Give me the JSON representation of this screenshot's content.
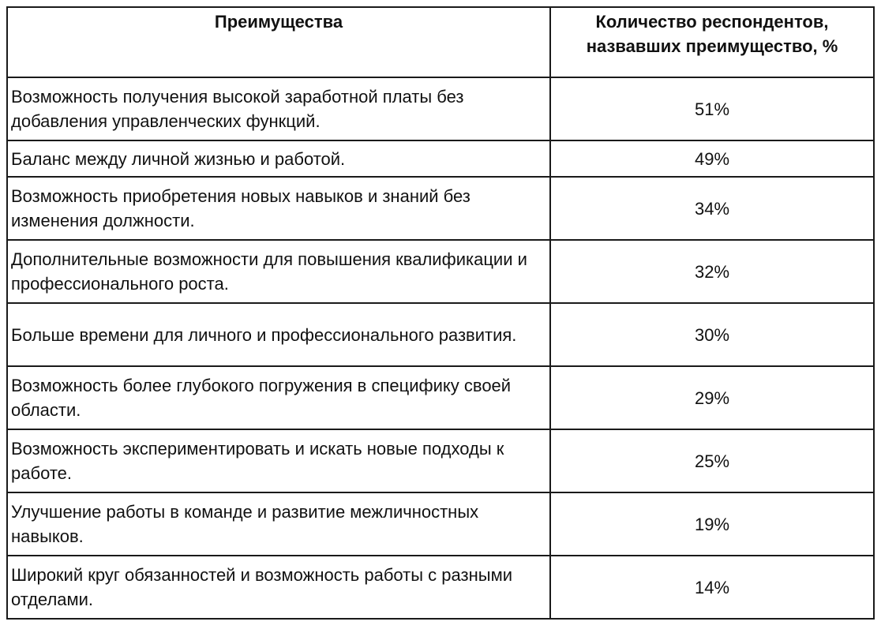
{
  "table": {
    "headers": [
      "Преимущества",
      "Количество респондентов, назвавших преимущество, %"
    ],
    "rows": [
      {
        "label": "Возможность получения высокой заработной платы без добавления управленческих функций.",
        "value": "51%"
      },
      {
        "label": "Баланс между личной жизнью и работой.",
        "value": "49%"
      },
      {
        "label": "Возможность приобретения новых навыков и знаний без изменения должности.",
        "value": "34%"
      },
      {
        "label": "Дополнительные возможности для повышения квалификации и профессионального роста.",
        "value": "32%"
      },
      {
        "label": "Больше времени для личного и профессионального развития.",
        "value": "30%"
      },
      {
        "label": "Возможность более глубокого погружения в специфику своей области.",
        "value": "29%"
      },
      {
        "label": "Возможность экспериментировать и искать новые подходы к работе.",
        "value": "25%"
      },
      {
        "label": "Улучшение работы в команде и развитие межличностных навыков.",
        "value": "19%"
      },
      {
        "label": "Широкий круг обязанностей и возможность работы с разными отделами.",
        "value": "14%"
      }
    ]
  }
}
